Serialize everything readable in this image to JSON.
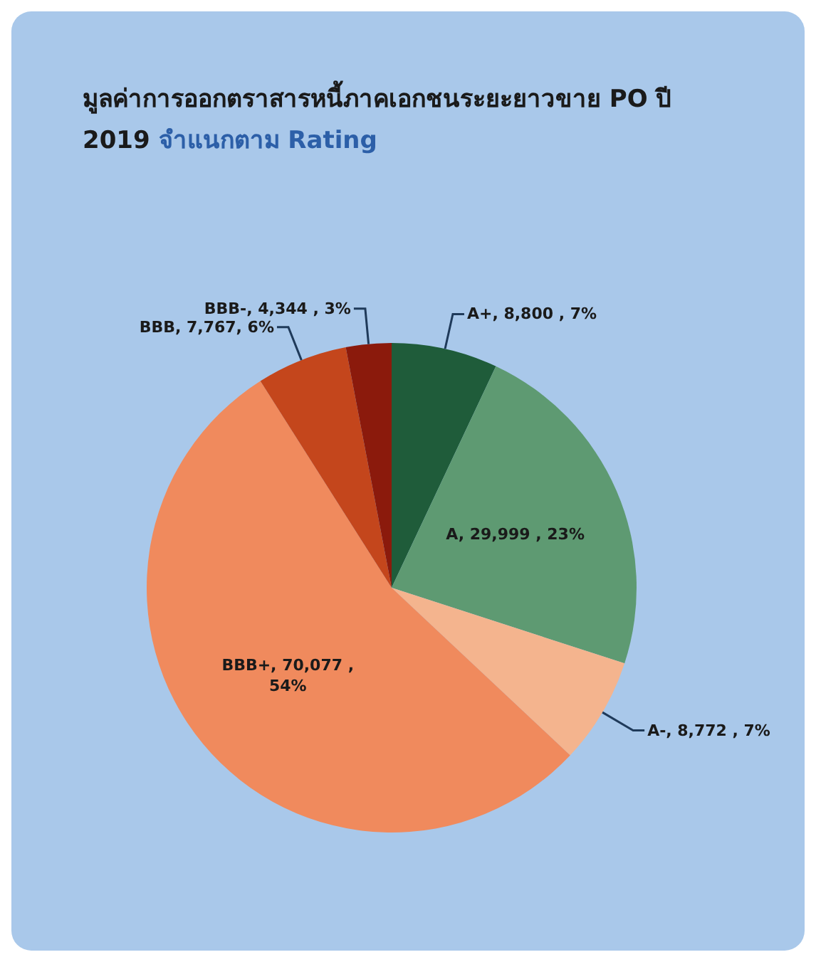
{
  "chart_data": {
    "type": "pie",
    "title": "มูลค่าการออกตราสารหนี้ภาคเอกชนระยะยาวขาย PO ปี 2019",
    "subtitle": "จำแนกตาม Rating",
    "categories": [
      "A+, 8,800 , 7%",
      "A, 29,999 , 23%",
      "A-, 8,772 , 7%",
      "BBB+, 70,077 , 54%",
      "BBB, 7,767, 6%",
      "BBB-, 4,344 , 3%"
    ],
    "values": [
      7,
      23,
      7,
      54,
      6,
      3
    ],
    "colors": [
      "#1f5c3a",
      "#5e9a72",
      "#f4b48e",
      "#f08a5d",
      "#c4461c",
      "#8b1a0c"
    ],
    "legend": false
  }
}
